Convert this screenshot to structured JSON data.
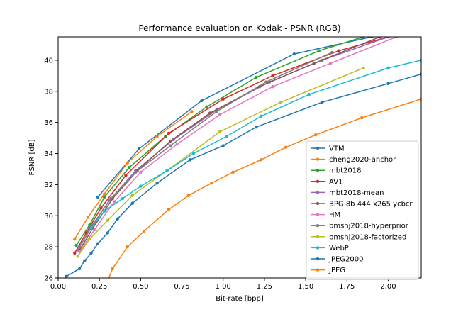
{
  "chart_data": {
    "type": "line",
    "title": "Performance evaluation on Kodak - PSNR (RGB)",
    "xlabel": "Bit-rate [bpp]",
    "ylabel": "PSNR [dB]",
    "xlim": [
      0.0,
      2.2
    ],
    "ylim": [
      26,
      41.5
    ],
    "xticks": [
      "0.00",
      "0.25",
      "0.50",
      "0.75",
      "1.00",
      "1.25",
      "1.50",
      "1.75",
      "2.00"
    ],
    "yticks": [
      "26",
      "28",
      "30",
      "32",
      "34",
      "36",
      "38",
      "40"
    ],
    "grid": false,
    "legend_position": "lower-right",
    "series": [
      {
        "name": "VTM",
        "color": "#1f77b4",
        "points": [
          [
            0.24,
            31.2
          ],
          [
            0.49,
            34.3
          ],
          [
            0.87,
            37.4
          ],
          [
            1.43,
            40.4
          ],
          [
            1.9,
            41.5
          ]
        ]
      },
      {
        "name": "cheng2020-anchor",
        "color": "#ff7f0e",
        "points": [
          [
            0.1,
            28.5
          ],
          [
            0.18,
            29.9
          ],
          [
            0.28,
            31.4
          ],
          [
            0.42,
            33.4
          ],
          [
            0.6,
            35.1
          ],
          [
            0.81,
            36.7
          ]
        ]
      },
      {
        "name": "mbt2018",
        "color": "#2ca02c",
        "points": [
          [
            0.11,
            28.1
          ],
          [
            0.19,
            29.4
          ],
          [
            0.28,
            31.2
          ],
          [
            0.43,
            33.1
          ],
          [
            0.65,
            35.1
          ],
          [
            0.9,
            37.0
          ],
          [
            1.2,
            38.9
          ],
          [
            1.58,
            40.6
          ],
          [
            1.85,
            41.5
          ]
        ]
      },
      {
        "name": "AV1",
        "color": "#d62728",
        "points": [
          [
            0.1,
            27.6
          ],
          [
            0.17,
            28.9
          ],
          [
            0.26,
            30.5
          ],
          [
            0.41,
            32.6
          ],
          [
            0.67,
            35.3
          ],
          [
            1.0,
            37.5
          ],
          [
            1.3,
            39.0
          ],
          [
            1.7,
            40.6
          ],
          [
            2.0,
            41.5
          ]
        ]
      },
      {
        "name": "mbt2018-mean",
        "color": "#9467bd",
        "points": [
          [
            0.12,
            27.8
          ],
          [
            0.2,
            29.3
          ],
          [
            0.32,
            31.1
          ],
          [
            0.47,
            32.9
          ],
          [
            0.7,
            34.9
          ],
          [
            0.96,
            36.8
          ],
          [
            1.28,
            38.6
          ],
          [
            1.6,
            40.0
          ],
          [
            2.0,
            41.5
          ]
        ]
      },
      {
        "name": "BPG 8b 444 x265 ycbcr",
        "color": "#8c564b",
        "points": [
          [
            0.13,
            27.8
          ],
          [
            0.21,
            29.2
          ],
          [
            0.33,
            31.1
          ],
          [
            0.48,
            32.9
          ],
          [
            0.68,
            34.8
          ],
          [
            0.92,
            36.6
          ],
          [
            1.22,
            38.3
          ],
          [
            1.55,
            39.8
          ],
          [
            1.95,
            41.5
          ]
        ]
      },
      {
        "name": "HM",
        "color": "#e377c2",
        "points": [
          [
            0.13,
            27.7
          ],
          [
            0.22,
            29.1
          ],
          [
            0.34,
            30.9
          ],
          [
            0.5,
            32.8
          ],
          [
            0.72,
            34.6
          ],
          [
            0.98,
            36.5
          ],
          [
            1.3,
            38.3
          ],
          [
            1.65,
            39.8
          ],
          [
            2.05,
            41.5
          ]
        ]
      },
      {
        "name": "bmshj2018-hyperprior",
        "color": "#7f7f7f",
        "points": [
          [
            0.13,
            28.0
          ],
          [
            0.21,
            29.4
          ],
          [
            0.31,
            31.0
          ],
          [
            0.47,
            32.8
          ],
          [
            0.68,
            34.5
          ],
          [
            0.96,
            36.7
          ],
          [
            1.26,
            38.6
          ],
          [
            1.66,
            40.5
          ]
        ]
      },
      {
        "name": "bmshj2018-factorized",
        "color": "#bcbd22",
        "points": [
          [
            0.12,
            27.4
          ],
          [
            0.19,
            28.5
          ],
          [
            0.3,
            29.7
          ],
          [
            0.45,
            31.3
          ],
          [
            0.66,
            32.9
          ],
          [
            0.98,
            35.4
          ],
          [
            1.35,
            37.3
          ],
          [
            1.85,
            39.5
          ]
        ]
      },
      {
        "name": "WebP",
        "color": "#17becf",
        "points": [
          [
            0.2,
            29.2
          ],
          [
            0.28,
            30.3
          ],
          [
            0.39,
            31.1
          ],
          [
            0.5,
            31.9
          ],
          [
            0.66,
            32.9
          ],
          [
            0.82,
            34.0
          ],
          [
            1.02,
            35.1
          ],
          [
            1.23,
            36.4
          ],
          [
            1.52,
            37.8
          ],
          [
            2.0,
            39.5
          ],
          [
            2.2,
            40.0
          ]
        ]
      },
      {
        "name": "JPEG2000",
        "color": "#1f77b4",
        "points": [
          [
            0.05,
            26.1
          ],
          [
            0.13,
            26.6
          ],
          [
            0.16,
            27.1
          ],
          [
            0.2,
            27.6
          ],
          [
            0.24,
            28.2
          ],
          [
            0.3,
            28.9
          ],
          [
            0.36,
            29.8
          ],
          [
            0.45,
            30.8
          ],
          [
            0.6,
            32.1
          ],
          [
            0.8,
            33.6
          ],
          [
            1.0,
            34.5
          ],
          [
            1.2,
            35.7
          ],
          [
            1.6,
            37.3
          ],
          [
            2.0,
            38.5
          ],
          [
            2.2,
            39.1
          ]
        ]
      },
      {
        "name": "JPEG",
        "color": "#ff7f0e",
        "points": [
          [
            0.3,
            25.8
          ],
          [
            0.33,
            26.6
          ],
          [
            0.42,
            28.0
          ],
          [
            0.52,
            29.0
          ],
          [
            0.67,
            30.4
          ],
          [
            0.79,
            31.3
          ],
          [
            0.93,
            32.1
          ],
          [
            1.06,
            32.8
          ],
          [
            1.23,
            33.6
          ],
          [
            1.38,
            34.4
          ],
          [
            1.56,
            35.2
          ],
          [
            1.84,
            36.3
          ],
          [
            2.2,
            37.5
          ]
        ]
      }
    ]
  }
}
